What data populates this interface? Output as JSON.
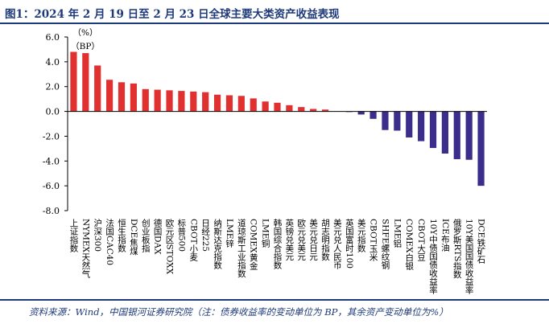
{
  "header": {
    "title": "图1：2024 年 2 月 19 日至 2 月 23 日全球主要大类资产收益表现"
  },
  "footer": {
    "source": "资料来源：Wind，中国银河证券研究院（注：债券收益率的变动单位为 BP，其余资产变动单位为%）"
  },
  "chart_data": {
    "type": "bar",
    "units": [
      "（%）",
      "（BP）"
    ],
    "ylim": [
      -8.0,
      6.0
    ],
    "yticks": [
      "6.0",
      "4.0",
      "2.0",
      "0.0",
      "-2.0",
      "-4.0",
      "-6.0",
      "-8.0"
    ],
    "grid": false,
    "legend": "none",
    "colors": {
      "positive": "#e03030",
      "negative": "#3a2d8c",
      "axis": "#000000",
      "frame": "#1f3a7a"
    },
    "categories": [
      "上证指数",
      "NYMEX天然气",
      "沪深300",
      "法国CAC40",
      "恒生指数",
      "DCE焦煤",
      "创业板指",
      "德国DAX",
      "欧元区STOXX",
      "标普500",
      "CBOT小麦",
      "日经225",
      "纳斯达克指数",
      "LME锌",
      "道琼斯工业指数",
      "COMEX黄金",
      "LME铜",
      "韩国综合指数",
      "英镑兑美元",
      "欧元兑美元",
      "美元兑日元",
      "胡志明指数",
      "美元兑人民币",
      "英国富时100",
      "美元指数",
      "CBOT玉米",
      "SHFE螺纹钢",
      "LME铝",
      "COMEX白银",
      "CBOT大豆",
      "10Y中债国债收益率",
      "ICE布油",
      "俄罗斯RTS指数",
      "10Y美国国债收益率",
      "DCE铁矿石"
    ],
    "values": [
      4.8,
      4.7,
      3.7,
      2.55,
      2.35,
      2.25,
      1.8,
      1.75,
      1.7,
      1.65,
      1.6,
      1.55,
      1.35,
      1.3,
      1.25,
      1.05,
      0.8,
      0.7,
      0.5,
      0.35,
      0.2,
      0.15,
      0.0,
      -0.05,
      -0.25,
      -0.6,
      -1.5,
      -1.55,
      -2.1,
      -2.4,
      -2.95,
      -3.4,
      -3.85,
      -3.9,
      -6.0
    ]
  }
}
